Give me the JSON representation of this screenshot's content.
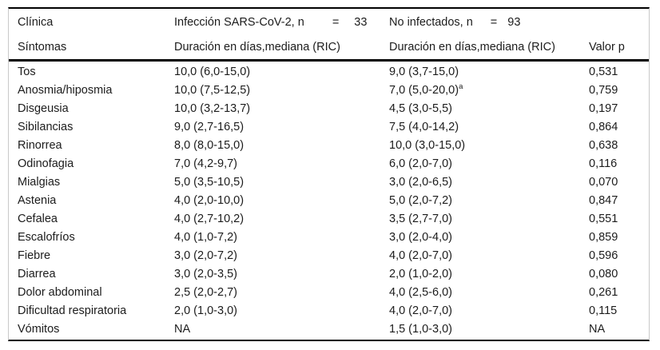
{
  "table": {
    "header": {
      "row1": {
        "col1": "Clínica",
        "col2": {
          "label": "Infección SARS-CoV-2, n",
          "eq": "=",
          "n": "33"
        },
        "col3": {
          "label": "No infectados, n",
          "eq": "=",
          "n": "93"
        }
      },
      "row2": {
        "col1": "Síntomas",
        "col2": "Duración en días,mediana (RIC)",
        "col3": "Duración en días,mediana (RIC)",
        "col4": "Valor p"
      }
    },
    "rows": [
      {
        "symptom": "Tos",
        "infected": "10,0 (6,0-15,0)",
        "not_infected": "9,0 (3,7-15,0)",
        "not_infected_sup": "",
        "p": "0,531"
      },
      {
        "symptom": "Anosmia/hiposmia",
        "infected": "10,0 (7,5-12,5)",
        "not_infected": "7,0 (5,0-20,0)",
        "not_infected_sup": "a",
        "p": "0,759"
      },
      {
        "symptom": "Disgeusia",
        "infected": "10,0 (3,2-13,7)",
        "not_infected": "4,5 (3,0-5,5)",
        "not_infected_sup": "",
        "p": "0,197"
      },
      {
        "symptom": "Sibilancias",
        "infected": "9,0 (2,7-16,5)",
        "not_infected": "7,5 (4,0-14,2)",
        "not_infected_sup": "",
        "p": "0,864"
      },
      {
        "symptom": "Rinorrea",
        "infected": "8,0 (8,0-15,0)",
        "not_infected": "10,0 (3,0-15,0)",
        "not_infected_sup": "",
        "p": "0,638"
      },
      {
        "symptom": "Odinofagia",
        "infected": "7,0 (4,2-9,7)",
        "not_infected": "6,0 (2,0-7,0)",
        "not_infected_sup": "",
        "p": "0,116"
      },
      {
        "symptom": "Mialgias",
        "infected": "5,0 (3,5-10,5)",
        "not_infected": "3,0 (2,0-6,5)",
        "not_infected_sup": "",
        "p": "0,070"
      },
      {
        "symptom": "Astenia",
        "infected": "4,0 (2,0-10,0)",
        "not_infected": "5,0 (2,0-7,2)",
        "not_infected_sup": "",
        "p": "0,847"
      },
      {
        "symptom": "Cefalea",
        "infected": "4,0 (2,7-10,2)",
        "not_infected": "3,5 (2,7-7,0)",
        "not_infected_sup": "",
        "p": "0,551"
      },
      {
        "symptom": "Escalofríos",
        "infected": "4,0 (1,0-7,2)",
        "not_infected": "3,0 (2,0-4,0)",
        "not_infected_sup": "",
        "p": "0,859"
      },
      {
        "symptom": "Fiebre",
        "infected": "3,0 (2,0-7,2)",
        "not_infected": "4,0 (2,0-7,0)",
        "not_infected_sup": "",
        "p": "0,596"
      },
      {
        "symptom": "Diarrea",
        "infected": "3,0 (2,0-3,5)",
        "not_infected": "2,0 (1,0-2,0)",
        "not_infected_sup": "",
        "p": "0,080"
      },
      {
        "symptom": "Dolor abdominal",
        "infected": "2,5 (2,0-2,7)",
        "not_infected": "4,0 (2,5-6,0)",
        "not_infected_sup": "",
        "p": "0,261"
      },
      {
        "symptom": "Dificultad respiratoria",
        "infected": "2,0 (1,0-3,0)",
        "not_infected": "4,0 (2,0-7,0)",
        "not_infected_sup": "",
        "p": "0,115"
      },
      {
        "symptom": "Vómitos",
        "infected": "NA",
        "not_infected": "1,5 (1,0-3,0)",
        "not_infected_sup": "",
        "p": "NA"
      }
    ]
  },
  "colors": {
    "rule_dark": "#000000",
    "frame_light": "#c9c9c9",
    "text": "#1c1c1c",
    "background": "#ffffff"
  }
}
